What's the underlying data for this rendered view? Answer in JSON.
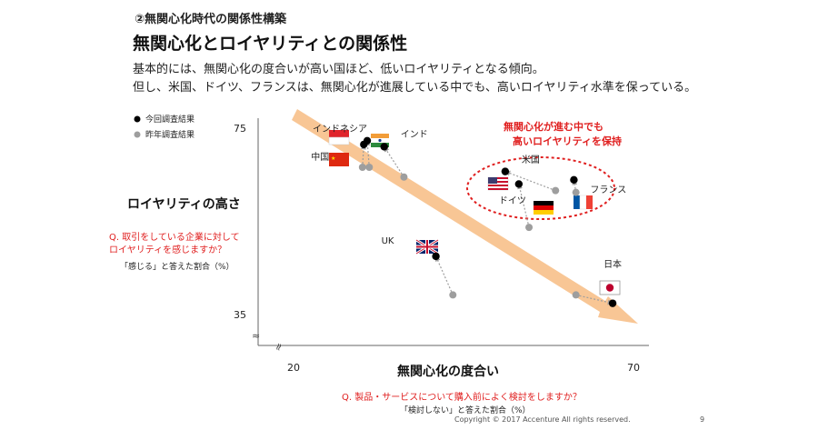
{
  "header": {
    "section": "②無関心化時代の関係性構築",
    "title": "無関心化とロイヤリティとの関係性",
    "subtitle_line1": "基本的には、無関心化の度合いが高い国ほど、低いロイヤリティとなる傾向。",
    "subtitle_line2": "但し、米国、ドイツ、フランスは、無関心化が進展している中でも、高いロイヤリティ水準を保っている。"
  },
  "legend": {
    "current": "今回調査結果",
    "previous": "昨年調査結果"
  },
  "y_axis": {
    "title": "ロイヤリティの高さ",
    "question_line1": "Q. 取引をしている企業に対して",
    "question_line2": "ロイヤリティを感じますか？",
    "measure": "「感じる」と答えた割合（%）"
  },
  "x_axis": {
    "title": "無関心化の度合い",
    "question": "Q. 製品・サービスについて購入前によく検討をしますか？",
    "measure": "「検討しない」と答えた割合（%）"
  },
  "callout": {
    "line1": "無関心化が進む中でも",
    "line2": "高いロイヤリティを保持"
  },
  "footer": {
    "copyright": "Copyright © 2017 Accenture  All rights reserved.",
    "page": "9"
  },
  "colors": {
    "trend_arrow": "#f7c089",
    "current_point": "#000000",
    "previous_point": "#9e9e9e",
    "callout": "#e02020"
  },
  "chart_data": {
    "type": "scatter",
    "xlim": [
      20,
      70
    ],
    "ylim": [
      35,
      75
    ],
    "xticks": [
      20,
      70
    ],
    "yticks": [
      35,
      75
    ],
    "grid": false,
    "legend_position": "top-left",
    "countries": [
      {
        "name": "インドネシア",
        "current": [
          30.7,
          72.7
        ],
        "previous": [
          31.0,
          67.0
        ],
        "label_pos": "upper-left"
      },
      {
        "name": "インド",
        "current": [
          33.2,
          71.4
        ],
        "previous": [
          36.1,
          64.9
        ],
        "label_pos": "upper-right"
      },
      {
        "name": "中国",
        "current": [
          30.2,
          71.9
        ],
        "previous": [
          30.0,
          67.0
        ],
        "label_pos": "left"
      },
      {
        "name": "米国",
        "current": [
          51.0,
          66.1
        ],
        "previous": [
          58.4,
          62.0
        ],
        "label_pos": "upper-right"
      },
      {
        "name": "ドイツ",
        "current": [
          53.0,
          63.4
        ],
        "previous": [
          54.5,
          54.1
        ],
        "label_pos": "below"
      },
      {
        "name": "フランス",
        "current": [
          61.1,
          64.3
        ],
        "previous": [
          61.4,
          61.6
        ],
        "label_pos": "right"
      },
      {
        "name": "UK",
        "current": [
          40.8,
          47.9
        ],
        "previous": [
          43.3,
          39.6
        ],
        "label_pos": "upper-left"
      },
      {
        "name": "日本",
        "current": [
          66.8,
          37.8
        ],
        "previous": [
          61.4,
          39.6
        ],
        "label_pos": "above"
      }
    ],
    "highlight_group": [
      "米国",
      "ドイツ",
      "フランス"
    ]
  }
}
